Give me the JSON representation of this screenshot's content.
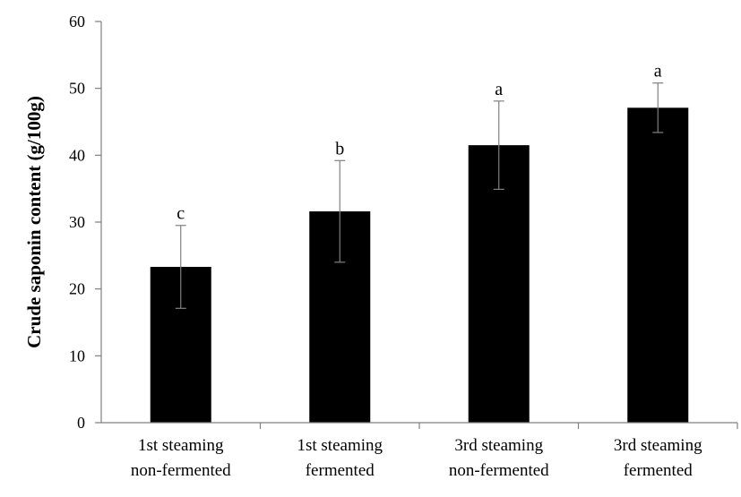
{
  "chart_data": {
    "type": "bar",
    "title": "",
    "xlabel": "",
    "ylabel": "Crude saponin content (g/100g)",
    "ylim": [
      0,
      60
    ],
    "yticks": [
      0,
      10,
      20,
      30,
      40,
      50,
      60
    ],
    "grid": false,
    "legend": "none",
    "bar_color": "#000000",
    "categories": [
      [
        "1st steaming",
        "non-fermented"
      ],
      [
        "1st steaming",
        "fermented"
      ],
      [
        "3rd steaming",
        "non-fermented"
      ],
      [
        "3rd steaming",
        "fermented"
      ]
    ],
    "values": [
      23.3,
      31.6,
      41.5,
      47.1
    ],
    "errors": [
      6.2,
      7.6,
      6.6,
      3.7
    ],
    "significance": [
      "c",
      "b",
      "a",
      "a"
    ]
  }
}
